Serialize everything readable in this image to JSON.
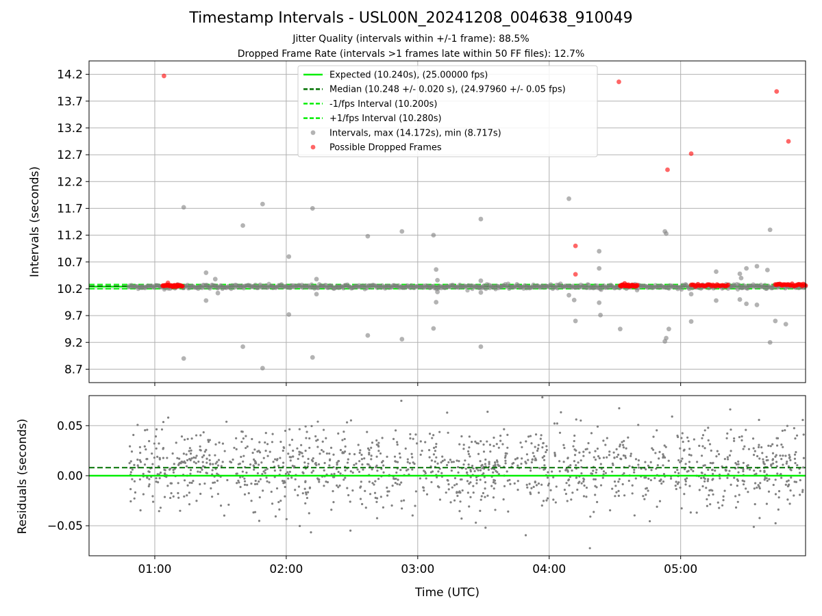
{
  "title": "Timestamp Intervals - USL00N_20241208_004638_910049",
  "subtitle_1": "Jitter Quality (intervals within +/-1 frame): 88.5%",
  "subtitle_2": "Dropped Frame Rate (intervals >1 frames late within 50 FF files): 12.7%",
  "colors": {
    "expected": "#00ee00",
    "median": "#007000",
    "interval_band": "#00ee00",
    "intervals": "#808080",
    "dropped": "#ff0000",
    "grid": "#b0b0b0"
  },
  "chart_data": [
    {
      "type": "scatter",
      "panel": "intervals",
      "ylabel": "Intervals (seconds)",
      "xlabel": "",
      "x_unit": "hours (UTC)",
      "xlim": [
        0.5,
        5.95
      ],
      "ylim": [
        8.45,
        14.45
      ],
      "yticks": [
        8.7,
        9.2,
        9.7,
        10.2,
        10.7,
        11.2,
        11.7,
        12.2,
        12.7,
        13.2,
        13.7,
        14.2
      ],
      "ytick_labels": [
        "8.7",
        "9.2",
        "9.7",
        "10.2",
        "10.7",
        "11.2",
        "11.7",
        "12.2",
        "12.7",
        "13.2",
        "13.7",
        "14.2"
      ],
      "xticks": [
        1,
        2,
        3,
        4,
        5
      ],
      "grid": true,
      "legend_placement": "top-center",
      "legend": [
        {
          "label": "Expected (10.240s), (25.00000 fps)",
          "kind": "solid-line",
          "color": "#00ee00"
        },
        {
          "label": "Median (10.248 +/- 0.020 s), (24.97960 +/- 0.05 fps)",
          "kind": "dashed-line",
          "color": "#007000"
        },
        {
          "label": "-1/fps Interval (10.200s)",
          "kind": "dashed-line",
          "color": "#00ee00"
        },
        {
          "label": "+1/fps Interval (10.280s)",
          "kind": "dashed-line",
          "color": "#00ee00"
        },
        {
          "label": "Intervals, max (14.172s), min (8.717s)",
          "kind": "dot",
          "color": "#808080"
        },
        {
          "label": "Possible Dropped Frames",
          "kind": "dot",
          "color": "#ff0000"
        }
      ],
      "reference_lines": {
        "expected": 10.24,
        "median": 10.248,
        "minus_one_fps": 10.2,
        "plus_one_fps": 10.28
      },
      "baseline": {
        "x_start": 0.8,
        "x_end": 5.95,
        "value": 10.24
      },
      "outliers": [
        [
          1.22,
          11.72
        ],
        [
          1.22,
          8.9
        ],
        [
          1.39,
          10.5
        ],
        [
          1.39,
          9.98
        ],
        [
          1.46,
          10.38
        ],
        [
          1.48,
          10.12
        ],
        [
          1.67,
          11.38
        ],
        [
          1.67,
          9.12
        ],
        [
          1.82,
          11.78
        ],
        [
          1.82,
          8.72
        ],
        [
          2.02,
          10.8
        ],
        [
          2.02,
          9.72
        ],
        [
          2.2,
          11.7
        ],
        [
          2.2,
          8.92
        ],
        [
          2.23,
          10.38
        ],
        [
          2.23,
          10.1
        ],
        [
          2.62,
          11.18
        ],
        [
          2.62,
          9.33
        ],
        [
          2.88,
          11.27
        ],
        [
          2.88,
          9.26
        ],
        [
          3.12,
          11.2
        ],
        [
          3.12,
          9.46
        ],
        [
          3.14,
          10.56
        ],
        [
          3.14,
          9.95
        ],
        [
          3.15,
          10.36
        ],
        [
          3.15,
          10.14
        ],
        [
          3.48,
          11.5
        ],
        [
          3.48,
          9.12
        ],
        [
          3.48,
          10.35
        ],
        [
          3.48,
          10.13
        ],
        [
          4.15,
          11.88
        ],
        [
          4.15,
          10.08
        ],
        [
          4.2,
          9.6
        ],
        [
          4.19,
          9.99
        ],
        [
          4.38,
          10.9
        ],
        [
          4.38,
          10.58
        ],
        [
          4.38,
          9.94
        ],
        [
          4.39,
          9.71
        ],
        [
          4.54,
          9.45
        ],
        [
          4.88,
          11.27
        ],
        [
          4.89,
          11.23
        ],
        [
          4.88,
          9.22
        ],
        [
          4.89,
          9.28
        ],
        [
          4.91,
          9.45
        ],
        [
          5.08,
          9.59
        ],
        [
          5.08,
          10.1
        ],
        [
          5.27,
          10.52
        ],
        [
          5.27,
          9.98
        ],
        [
          5.45,
          10.48
        ],
        [
          5.46,
          10.4
        ],
        [
          5.45,
          10.0
        ],
        [
          5.5,
          10.58
        ],
        [
          5.5,
          9.92
        ],
        [
          5.58,
          10.62
        ],
        [
          5.58,
          9.9
        ],
        [
          5.66,
          10.55
        ],
        [
          5.68,
          11.3
        ],
        [
          5.68,
          9.2
        ],
        [
          5.72,
          9.6
        ],
        [
          5.8,
          9.54
        ]
      ],
      "dropped_frames": [
        [
          1.07,
          14.17
        ],
        [
          4.53,
          14.06
        ],
        [
          4.9,
          12.42
        ],
        [
          5.08,
          12.72
        ],
        [
          5.73,
          13.88
        ],
        [
          5.82,
          12.95
        ],
        [
          4.2,
          11.0
        ],
        [
          4.2,
          10.47
        ],
        [
          1.1,
          10.31
        ]
      ],
      "dropped_clusters": [
        {
          "x_start": 1.06,
          "x_end": 1.21,
          "value": 10.26
        },
        {
          "x_start": 4.54,
          "x_end": 4.67,
          "value": 10.26
        },
        {
          "x_start": 5.08,
          "x_end": 5.36,
          "value": 10.26
        },
        {
          "x_start": 5.72,
          "x_end": 5.95,
          "value": 10.27
        }
      ]
    },
    {
      "type": "scatter",
      "panel": "residuals",
      "ylabel": "Residuals (seconds)",
      "xlabel": "Time (UTC)",
      "x_unit": "hours (UTC)",
      "xlim": [
        0.5,
        5.95
      ],
      "ylim": [
        -0.08,
        0.08
      ],
      "yticks": [
        -0.05,
        0.0,
        0.05
      ],
      "ytick_labels": [
        "−0.05",
        "0.00",
        "0.05"
      ],
      "xticks": [
        1,
        2,
        3,
        4,
        5
      ],
      "xtick_labels": [
        "01:00",
        "02:00",
        "03:00",
        "04:00",
        "05:00"
      ],
      "grid": true,
      "reference_lines": {
        "expected": 0.0,
        "median": 0.008
      },
      "residual_points": {
        "count": 1400,
        "x_start": 0.8,
        "x_end": 5.95,
        "mean": 0.008,
        "std": 0.02
      }
    }
  ]
}
